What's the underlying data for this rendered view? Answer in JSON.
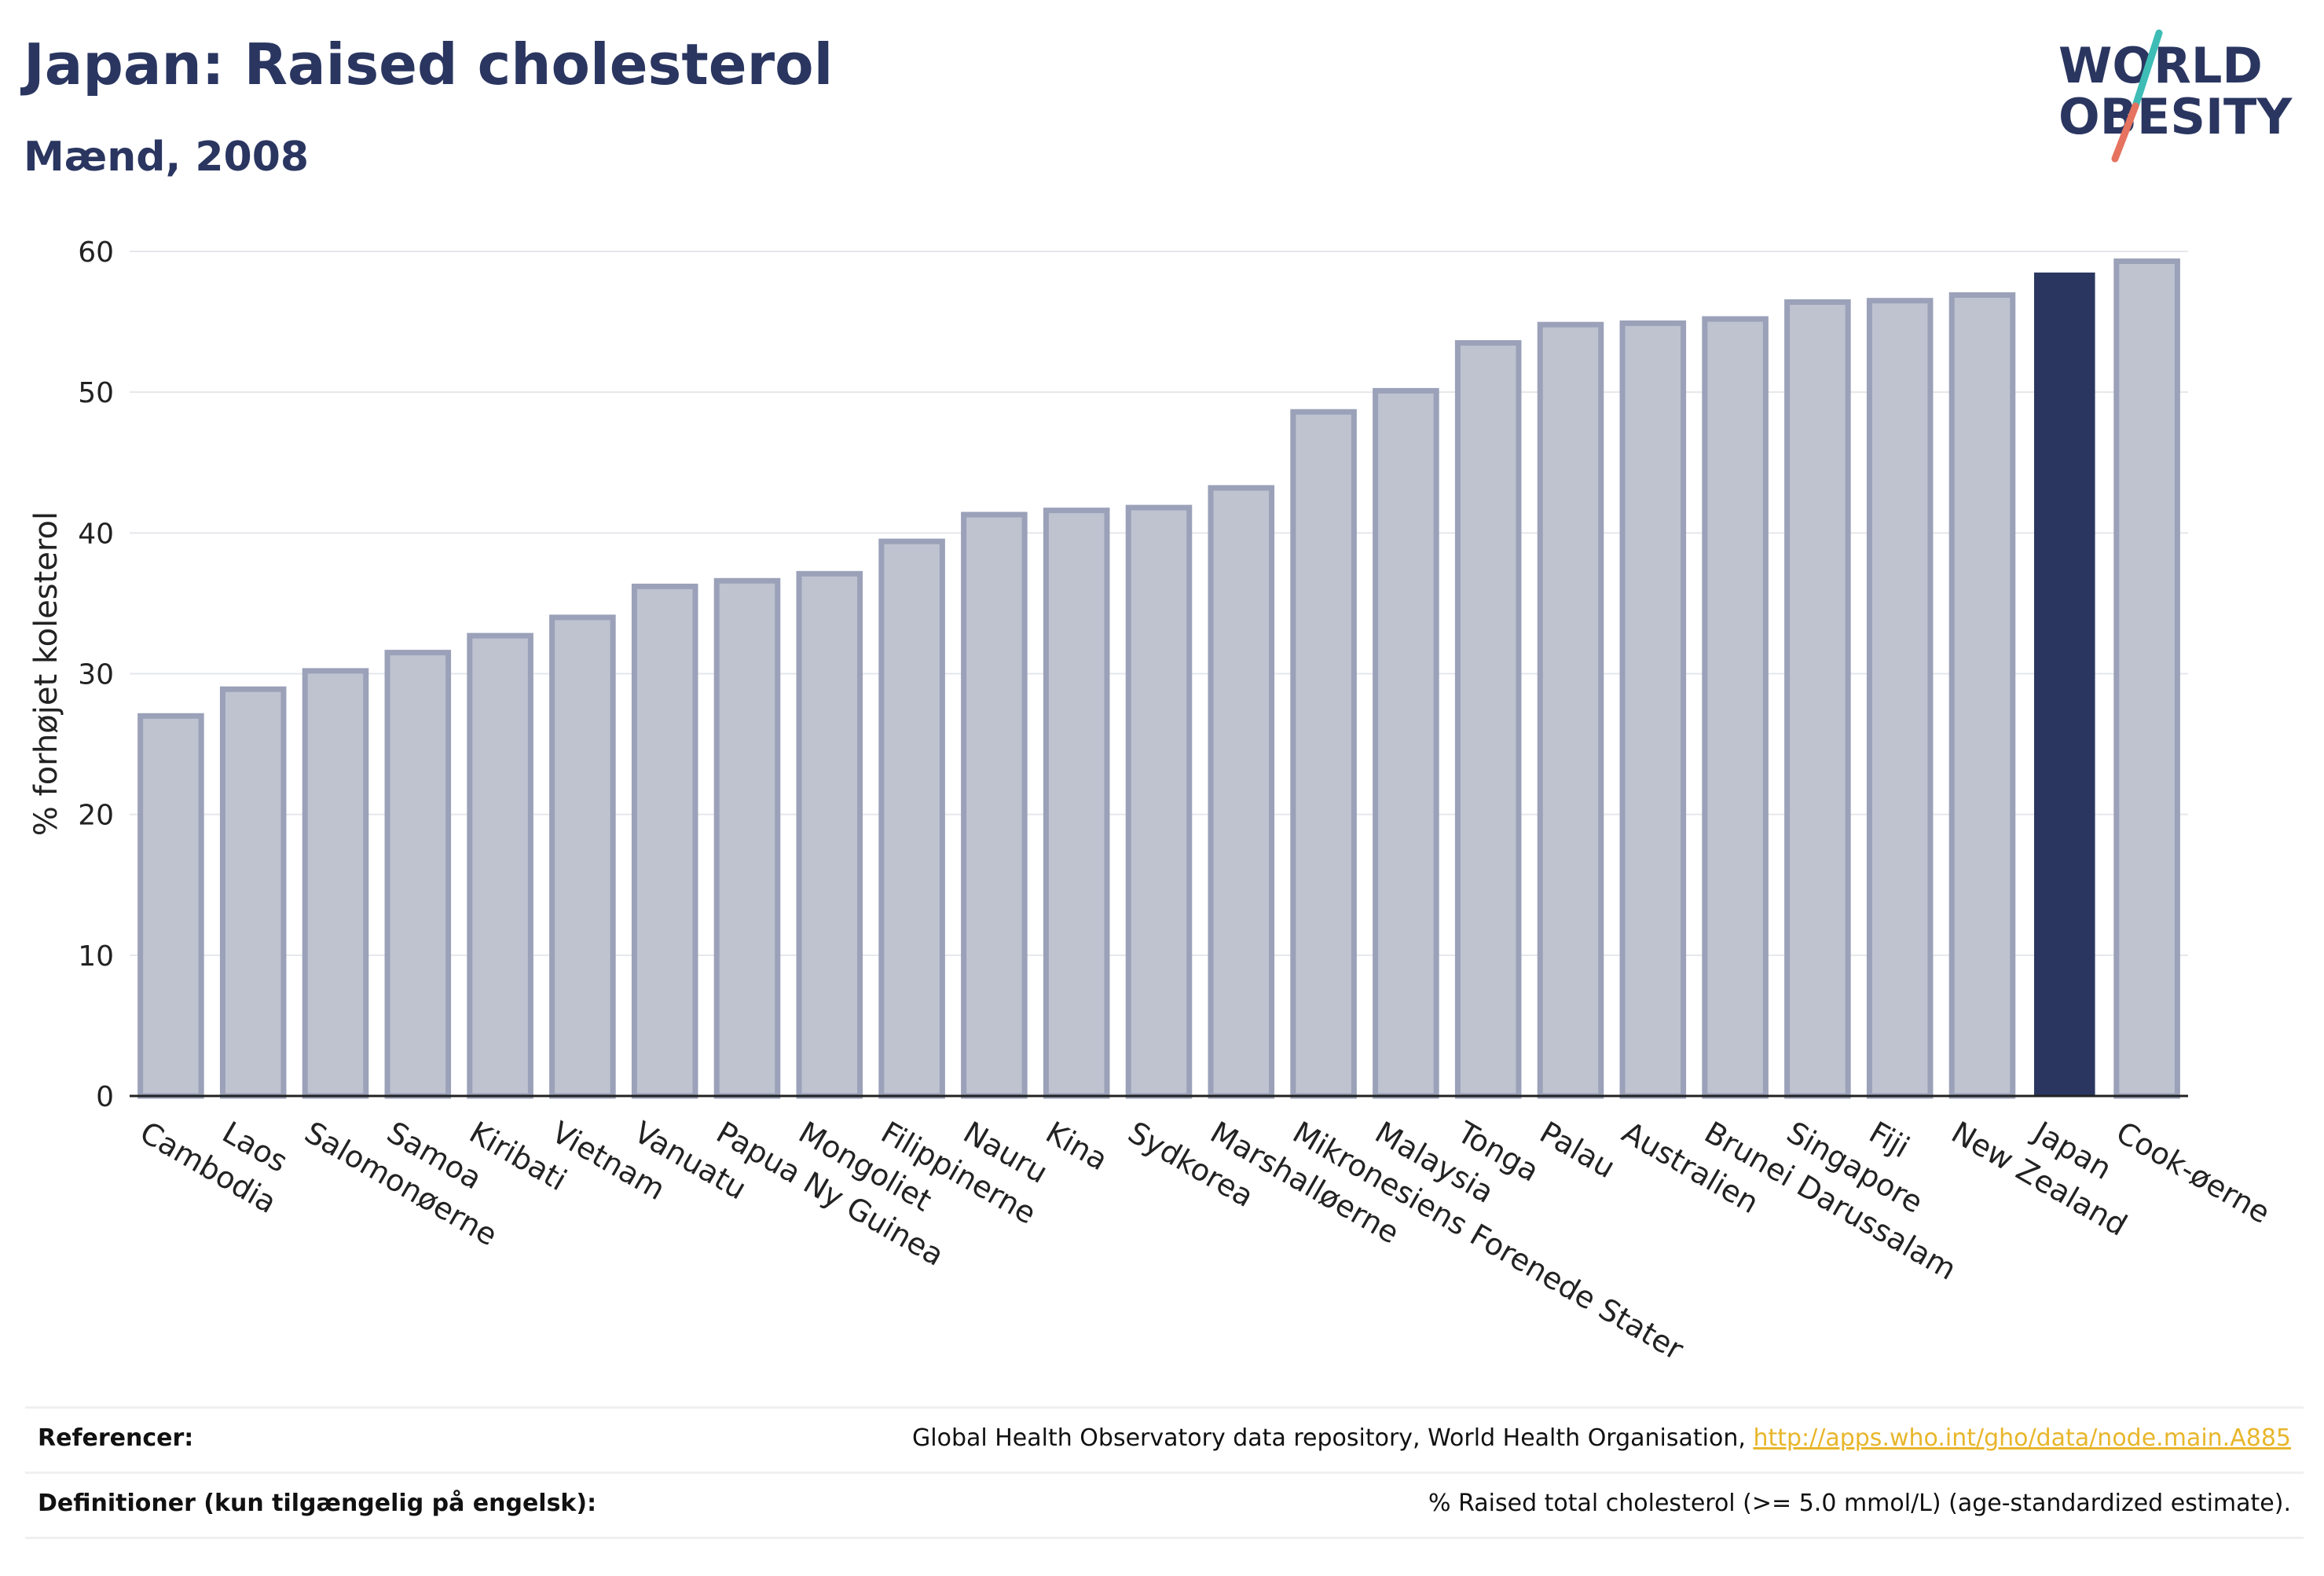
{
  "header": {
    "title": "Japan: Raised cholesterol",
    "subtitle": "Mænd, 2008"
  },
  "logo": {
    "line1": "WORLD",
    "line2": "OBESITY",
    "accent_teal": "#3dbdb6",
    "accent_coral": "#e5735f",
    "text_color": "#2a3660"
  },
  "chart_data": {
    "type": "bar",
    "ylabel": "% forhøjet kolesterol",
    "ylim": [
      0,
      60
    ],
    "yticks": [
      0,
      10,
      20,
      30,
      40,
      50,
      60
    ],
    "grid": true,
    "highlight": "Japan",
    "colors": {
      "bar": "#bfc3d0",
      "bar_edge": "#9aa1b8",
      "highlight": "#2a3660"
    },
    "categories": [
      "Cambodia",
      "Laos",
      "Salomonøerne",
      "Samoa",
      "Kiribati",
      "Vietnam",
      "Vanuatu",
      "Papua Ny Guinea",
      "Mongoliet",
      "Filippinerne",
      "Nauru",
      "Kina",
      "Sydkorea",
      "Marshalløerne",
      "Mikronesiens Forenede Stater",
      "Malaysia",
      "Tonga",
      "Palau",
      "Australien",
      "Brunei Darussalam",
      "Singapore",
      "Fiji",
      "New Zealand",
      "Japan",
      "Cook-øerne"
    ],
    "values": [
      27.0,
      28.9,
      30.2,
      31.5,
      32.7,
      34.0,
      36.2,
      36.6,
      37.1,
      39.4,
      41.3,
      41.6,
      41.8,
      43.2,
      48.6,
      50.1,
      53.5,
      54.8,
      54.9,
      55.2,
      56.4,
      56.5,
      56.9,
      58.5,
      59.3
    ]
  },
  "references": {
    "ref_label": "Referencer:",
    "ref_text": "Global Health Observatory data repository, World Health Organisation, ",
    "ref_link": "http://apps.who.int/gho/data/node.main.A885",
    "def_label": "Definitioner (kun tilgængelig på engelsk):",
    "def_text": "% Raised total cholesterol (>= 5.0 mmol/L) (age-standardized estimate)."
  }
}
